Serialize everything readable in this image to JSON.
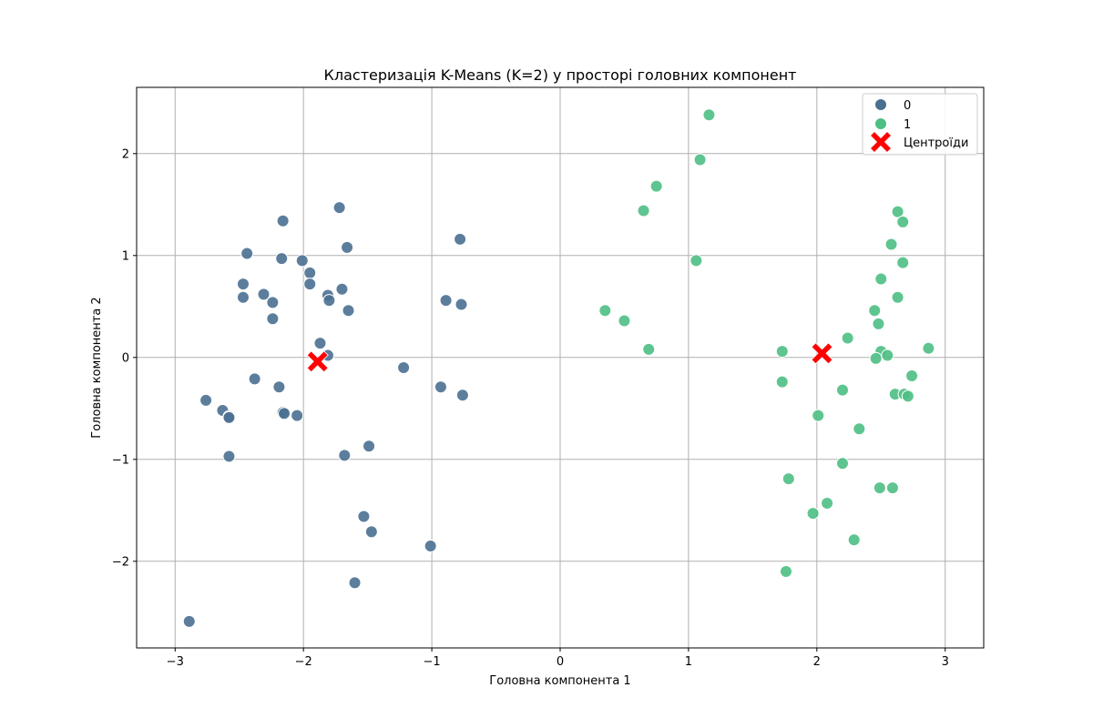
{
  "chart_data": {
    "type": "scatter",
    "title": "Кластеризація K-Means (K=2) у просторі головних компонент",
    "xlabel": "Головна компонента 1",
    "ylabel": "Головна компонента 2",
    "xlim": [
      -3.3,
      3.3
    ],
    "ylim": [
      -2.85,
      2.65
    ],
    "xticks": [
      -3,
      -2,
      -1,
      0,
      1,
      2,
      3
    ],
    "yticks": [
      -2,
      -1,
      0,
      1,
      2
    ],
    "xtick_labels": [
      "−3",
      "−2",
      "−1",
      "0",
      "1",
      "2",
      "3"
    ],
    "ytick_labels": [
      "−2",
      "−1",
      "0",
      "1",
      "2"
    ],
    "grid": true,
    "legend_position": "top-right",
    "series": [
      {
        "name": "0",
        "color": "#4a7091",
        "points": [
          [
            -1.72,
            1.47
          ],
          [
            -2.16,
            1.34
          ],
          [
            -2.44,
            1.02
          ],
          [
            -1.66,
            1.08
          ],
          [
            -2.17,
            0.97
          ],
          [
            -2.01,
            0.95
          ],
          [
            -1.95,
            0.83
          ],
          [
            -2.47,
            0.72
          ],
          [
            -1.95,
            0.72
          ],
          [
            -1.7,
            0.67
          ],
          [
            -2.31,
            0.62
          ],
          [
            -1.81,
            0.61
          ],
          [
            -2.47,
            0.59
          ],
          [
            -1.8,
            0.56
          ],
          [
            -2.24,
            0.54
          ],
          [
            -1.65,
            0.46
          ],
          [
            -2.24,
            0.38
          ],
          [
            -1.87,
            0.14
          ],
          [
            -1.81,
            0.02
          ],
          [
            -2.38,
            -0.21
          ],
          [
            -2.19,
            -0.29
          ],
          [
            -2.76,
            -0.42
          ],
          [
            -2.63,
            -0.52
          ],
          [
            -2.16,
            -0.54
          ],
          [
            -2.15,
            -0.55
          ],
          [
            -2.05,
            -0.57
          ],
          [
            -2.58,
            -0.58
          ],
          [
            -2.58,
            -0.59
          ],
          [
            -2.58,
            -0.97
          ],
          [
            -1.68,
            -0.96
          ],
          [
            -1.49,
            -0.87
          ],
          [
            -1.22,
            -0.1
          ],
          [
            -0.93,
            -0.29
          ],
          [
            -0.76,
            -0.37
          ],
          [
            -0.89,
            0.56
          ],
          [
            -0.77,
            0.52
          ],
          [
            -0.78,
            1.16
          ],
          [
            -1.53,
            -1.56
          ],
          [
            -1.47,
            -1.71
          ],
          [
            -1.01,
            -1.85
          ],
          [
            -1.6,
            -2.21
          ],
          [
            -2.89,
            -2.59
          ]
        ]
      },
      {
        "name": "1",
        "color": "#4dbf84",
        "points": [
          [
            1.16,
            2.38
          ],
          [
            1.09,
            1.94
          ],
          [
            0.75,
            1.68
          ],
          [
            0.65,
            1.44
          ],
          [
            1.06,
            0.95
          ],
          [
            0.35,
            0.46
          ],
          [
            0.5,
            0.36
          ],
          [
            0.69,
            0.08
          ],
          [
            1.73,
            0.06
          ],
          [
            1.73,
            -0.24
          ],
          [
            2.01,
            -0.57
          ],
          [
            2.24,
            0.19
          ],
          [
            2.2,
            -0.32
          ],
          [
            2.33,
            -0.7
          ],
          [
            2.2,
            -1.04
          ],
          [
            1.78,
            -1.19
          ],
          [
            2.08,
            -1.43
          ],
          [
            1.97,
            -1.53
          ],
          [
            2.29,
            -1.79
          ],
          [
            1.76,
            -2.1
          ],
          [
            2.63,
            1.43
          ],
          [
            2.67,
            1.33
          ],
          [
            2.58,
            1.11
          ],
          [
            2.67,
            0.93
          ],
          [
            2.5,
            0.77
          ],
          [
            2.63,
            0.59
          ],
          [
            2.45,
            0.46
          ],
          [
            2.48,
            0.33
          ],
          [
            2.5,
            0.06
          ],
          [
            2.55,
            0.02
          ],
          [
            2.46,
            -0.01
          ],
          [
            2.87,
            0.09
          ],
          [
            2.74,
            -0.18
          ],
          [
            2.61,
            -0.36
          ],
          [
            2.68,
            -0.36
          ],
          [
            2.71,
            -0.38
          ],
          [
            2.49,
            -1.28
          ],
          [
            2.59,
            -1.28
          ]
        ]
      }
    ],
    "centroids": {
      "name": "Центроїди",
      "color": "#ff0000",
      "points": [
        [
          -1.89,
          -0.04
        ],
        [
          2.04,
          0.04
        ]
      ]
    }
  }
}
